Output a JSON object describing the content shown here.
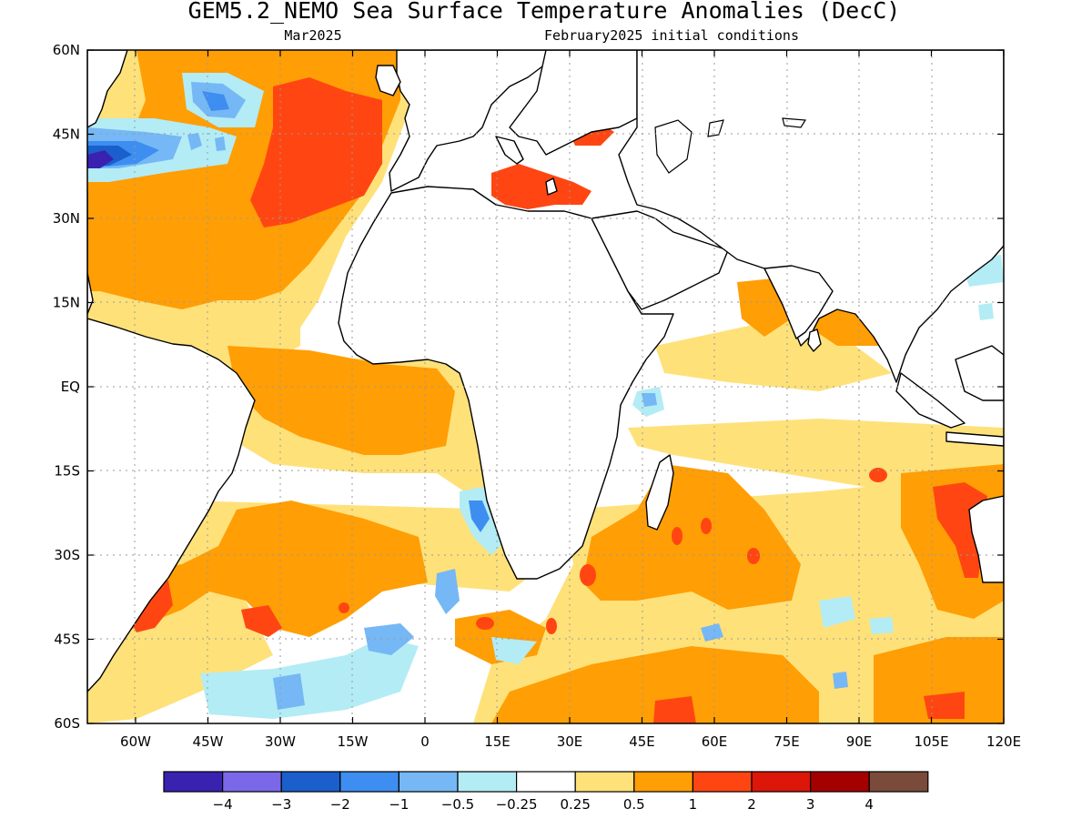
{
  "title": "GEM5.2_NEMO Sea Surface Temperature Anomalies (DecC)",
  "subtitle_left": "Mar2025",
  "subtitle_right": "February2025 initial conditions",
  "map": {
    "lon_range": [
      -70,
      120
    ],
    "lat_range": [
      -60,
      60
    ],
    "lat_ticks": [
      "60N",
      "45N",
      "30N",
      "15N",
      "EQ",
      "15S",
      "30S",
      "45S",
      "60S"
    ],
    "lon_ticks": [
      "60W",
      "45W",
      "30W",
      "15W",
      "0",
      "15E",
      "30E",
      "45E",
      "60E",
      "75E",
      "90E",
      "105E",
      "120E"
    ]
  },
  "colorbar": {
    "colors": [
      "#3a22b0",
      "#7b68e8",
      "#1a5fcc",
      "#3d8ef0",
      "#75b8f5",
      "#b3ecf5",
      "#ffffff",
      "#ffe17a",
      "#ff9e05",
      "#ff4612",
      "#dc1608",
      "#a50000",
      "#7a4a3a"
    ],
    "labels": [
      "−4",
      "−3",
      "−2",
      "−1",
      "−0.5",
      "−0.25",
      "0.25",
      "0.5",
      "1",
      "2",
      "3",
      "4"
    ]
  }
}
